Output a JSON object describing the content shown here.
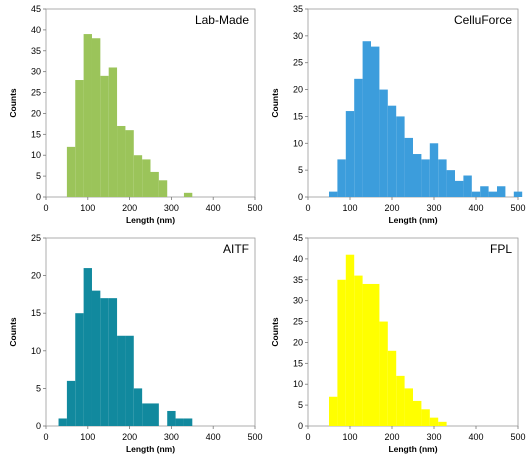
{
  "chart_data": [
    {
      "type": "bar",
      "title": "Lab-Made",
      "xlabel": "Length (nm)",
      "ylabel": "Counts",
      "xlim": [
        0,
        500
      ],
      "ylim": [
        0,
        45
      ],
      "xticks": [
        0,
        100,
        200,
        300,
        400,
        500
      ],
      "yticks": [
        0,
        5,
        10,
        15,
        20,
        25,
        30,
        35,
        40,
        45
      ],
      "bin_width": 20,
      "bin_starts": [
        50,
        70,
        90,
        110,
        130,
        150,
        170,
        190,
        210,
        230,
        250,
        270,
        290,
        310,
        330
      ],
      "values": [
        12,
        28,
        39,
        38,
        29,
        31,
        17,
        16,
        10,
        9,
        6,
        4,
        0,
        0,
        1
      ],
      "color": "#9bc45a",
      "grid": false,
      "legend": "none"
    },
    {
      "type": "bar",
      "title": "CelluForce",
      "xlabel": "Length (nm)",
      "ylabel": "Counts",
      "xlim": [
        0,
        500
      ],
      "ylim": [
        0,
        35
      ],
      "xticks": [
        0,
        100,
        200,
        300,
        400,
        500
      ],
      "yticks": [
        0,
        5,
        10,
        15,
        20,
        25,
        30,
        35
      ],
      "bin_width": 20,
      "bin_starts": [
        50,
        70,
        90,
        110,
        130,
        150,
        170,
        190,
        210,
        230,
        250,
        270,
        290,
        310,
        330,
        350,
        370,
        390,
        410,
        430,
        450,
        470,
        490
      ],
      "values": [
        1,
        7,
        16,
        22,
        29,
        28,
        20,
        17,
        15,
        11,
        8,
        7,
        10,
        7,
        5,
        3,
        4,
        1,
        2,
        1,
        2,
        0,
        1
      ],
      "color": "#3c9ddc",
      "grid": false,
      "legend": "none"
    },
    {
      "type": "bar",
      "title": "AITF",
      "xlabel": "Length (nm)",
      "ylabel": "Counts",
      "xlim": [
        0,
        500
      ],
      "ylim": [
        0,
        25
      ],
      "xticks": [
        0,
        100,
        200,
        300,
        400,
        500
      ],
      "yticks": [
        0,
        5,
        10,
        15,
        20,
        25
      ],
      "bin_width": 20,
      "bin_starts": [
        30,
        50,
        70,
        90,
        110,
        130,
        150,
        170,
        190,
        210,
        230,
        250,
        270,
        290,
        310,
        330
      ],
      "values": [
        1,
        6,
        15,
        21,
        18,
        17,
        17,
        12,
        12,
        5,
        3,
        3,
        0,
        2,
        1,
        1
      ],
      "color": "#11899e",
      "grid": false,
      "legend": "none"
    },
    {
      "type": "bar",
      "title": "FPL",
      "xlabel": "Length (nm)",
      "ylabel": "Counts",
      "xlim": [
        0,
        500
      ],
      "ylim": [
        0,
        45
      ],
      "xticks": [
        0,
        100,
        200,
        300,
        400,
        500
      ],
      "yticks": [
        0,
        5,
        10,
        15,
        20,
        25,
        30,
        35,
        40,
        45
      ],
      "bin_width": 20,
      "bin_starts": [
        50,
        70,
        90,
        110,
        130,
        150,
        170,
        190,
        210,
        230,
        250,
        270,
        290,
        310,
        330
      ],
      "values": [
        7,
        35,
        41,
        36,
        34,
        34,
        25,
        18,
        12,
        9,
        6,
        4,
        2,
        1,
        0
      ],
      "color": "#ffff00",
      "grid": false,
      "legend": "none"
    }
  ]
}
